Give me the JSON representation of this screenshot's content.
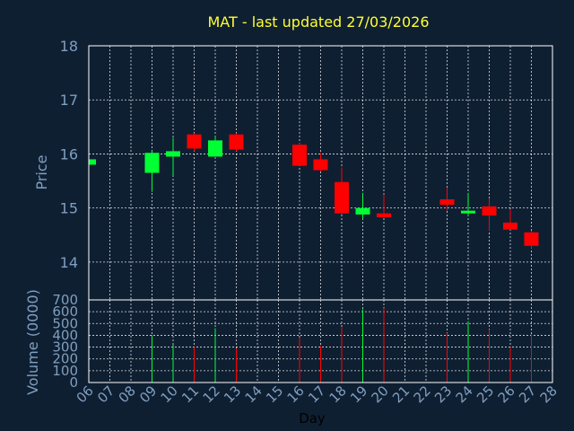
{
  "chart_data": {
    "type": "candlestick",
    "title": "MAT - last updated 27/03/2026",
    "xlabel": "Day",
    "ylabel": "Price",
    "ylim": [
      13.3,
      18
    ],
    "yticks": [
      14,
      15,
      16,
      17,
      18
    ],
    "volume_ylabel": "Volume (0000)",
    "volume_ylim": [
      0,
      700
    ],
    "volume_yticks": [
      0,
      100,
      200,
      300,
      400,
      500,
      600,
      700
    ],
    "x_ticks": [
      "06",
      "07",
      "08",
      "09",
      "10",
      "11",
      "12",
      "13",
      "14",
      "15",
      "16",
      "17",
      "18",
      "19",
      "20",
      "21",
      "22",
      "23",
      "24",
      "25",
      "26",
      "27",
      "28"
    ],
    "grid": true,
    "colors": {
      "up": "#00ff33",
      "down": "#ff0000",
      "background": "#0f1f32",
      "title": "#ffff33",
      "axis_text": "#7f9fbf"
    },
    "candles": [
      {
        "day": "06",
        "open": 15.8,
        "high": 15.9,
        "low": 15.8,
        "close": 15.9,
        "volume": 0
      },
      {
        "day": "09",
        "open": 15.65,
        "high": 16.05,
        "low": 15.3,
        "close": 16.02,
        "volume": 400
      },
      {
        "day": "10",
        "open": 15.95,
        "high": 16.3,
        "low": 15.6,
        "close": 16.05,
        "volume": 320
      },
      {
        "day": "11",
        "open": 16.36,
        "high": 16.38,
        "low": 16.05,
        "close": 16.1,
        "volume": 300
      },
      {
        "day": "12",
        "open": 15.95,
        "high": 16.33,
        "low": 15.95,
        "close": 16.25,
        "volume": 460
      },
      {
        "day": "13",
        "open": 16.36,
        "high": 16.38,
        "low": 16.05,
        "close": 16.08,
        "volume": 290
      },
      {
        "day": "16",
        "open": 16.17,
        "high": 16.2,
        "low": 15.78,
        "close": 15.78,
        "volume": 380
      },
      {
        "day": "17",
        "open": 15.9,
        "high": 16.02,
        "low": 15.68,
        "close": 15.7,
        "volume": 310
      },
      {
        "day": "18",
        "open": 15.48,
        "high": 15.75,
        "low": 14.88,
        "close": 14.9,
        "volume": 470
      },
      {
        "day": "19",
        "open": 14.88,
        "high": 15.28,
        "low": 14.8,
        "close": 15.0,
        "volume": 620
      },
      {
        "day": "20",
        "open": 14.9,
        "high": 15.25,
        "low": 14.82,
        "close": 14.83,
        "volume": 630
      },
      {
        "day": "23",
        "open": 15.16,
        "high": 15.38,
        "low": 14.95,
        "close": 15.06,
        "volume": 420
      },
      {
        "day": "24",
        "open": 14.9,
        "high": 15.28,
        "low": 14.85,
        "close": 14.95,
        "volume": 520
      },
      {
        "day": "25",
        "open": 15.03,
        "high": 15.18,
        "low": 14.58,
        "close": 14.86,
        "volume": 450
      },
      {
        "day": "26",
        "open": 14.73,
        "high": 14.98,
        "low": 14.6,
        "close": 14.6,
        "volume": 300
      },
      {
        "day": "27",
        "open": 14.55,
        "high": 14.58,
        "low": 14.25,
        "close": 14.3,
        "volume": 410
      }
    ]
  }
}
